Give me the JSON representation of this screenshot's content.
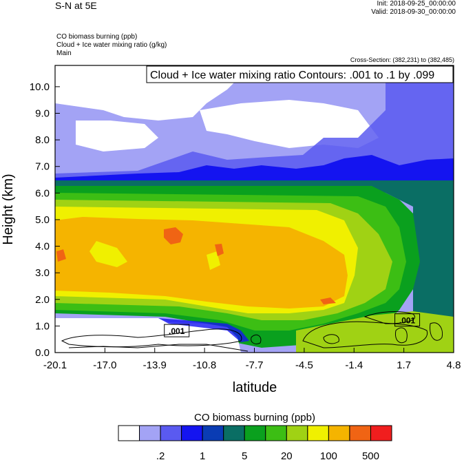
{
  "header": {
    "title": "S-N at 5E",
    "init": "Init: 2018-09-25_00:00:00",
    "valid": "Valid: 2018-09-30_00:00:00",
    "field1": "CO biomass burning   (ppb)",
    "field2": "Cloud + Ice water mixing ratio   (g/kg)",
    "field3": "Main",
    "cross_section": "Cross-Section: (382,231) to (382,485)"
  },
  "chart_data": {
    "type": "heatmap",
    "contour_info": "Cloud + Ice water mixing ratio Contours: .001 to .1 by .099",
    "xlabel": "latitude",
    "ylabel": "Height (km)",
    "xlim": [
      -20.1,
      4.8
    ],
    "ylim": [
      0.0,
      10.8
    ],
    "x_ticks": [
      "-20.1",
      "-17.0",
      "-13.9",
      "-10.8",
      "-7.7",
      "-4.5",
      "-1.4",
      "1.7",
      "4.8"
    ],
    "y_ticks": [
      "0.0",
      "1.0",
      "2.0",
      "3.0",
      "4.0",
      "5.0",
      "6.0",
      "7.0",
      "8.0",
      "9.0",
      "10.0"
    ],
    "contour_labels": [
      {
        "text": ".001",
        "lat": -12.5,
        "height": 0.8
      },
      {
        "text": ".001",
        "lat": 1.9,
        "height": 1.2
      }
    ],
    "colorbar": {
      "title": "CO biomass burning  (ppb)",
      "colors": [
        "#ffffff",
        "#a3a3f5",
        "#5a5af0",
        "#1414f0",
        "#0a3cb4",
        "#0a6e64",
        "#0aa01e",
        "#3cbe14",
        "#a0d214",
        "#f0f000",
        "#f5b400",
        "#f06414",
        "#f01e1e"
      ],
      "tick_labels": [
        ".2",
        "1",
        "5",
        "20",
        "100",
        "500"
      ]
    },
    "regions": [
      {
        "band": "white",
        "value": "<0.2",
        "lat": [
          -9.0,
          -0.5
        ],
        "height": [
          8.0,
          10.8
        ]
      },
      {
        "band": "light-blue",
        "value": "0.2-0.5",
        "lat": [
          -20.1,
          4.8
        ],
        "height": [
          6.5,
          10.8
        ]
      },
      {
        "band": "green",
        "value": "5-20",
        "lat": [
          -20.1,
          4.8
        ],
        "height": [
          5.5,
          6.5
        ]
      },
      {
        "band": "yellow",
        "value": "50-100",
        "lat": [
          -20.1,
          -3.0
        ],
        "height": [
          1.5,
          5.5
        ]
      },
      {
        "band": "orange",
        "value": "100-200",
        "lat": [
          -20.1,
          -3.0
        ],
        "height": [
          2.0,
          5.0
        ]
      },
      {
        "band": "red-orange",
        "value": "200-500",
        "lat": [
          -12.0,
          -11.0
        ],
        "height": [
          4.2,
          4.6
        ]
      },
      {
        "band": "white",
        "value": "<0.2",
        "lat": [
          -20.1,
          -8.0
        ],
        "height": [
          0.0,
          1.3
        ]
      },
      {
        "band": "light-green",
        "value": "20-50",
        "lat": [
          -3.5,
          4.8
        ],
        "height": [
          0.0,
          1.5
        ]
      }
    ]
  }
}
